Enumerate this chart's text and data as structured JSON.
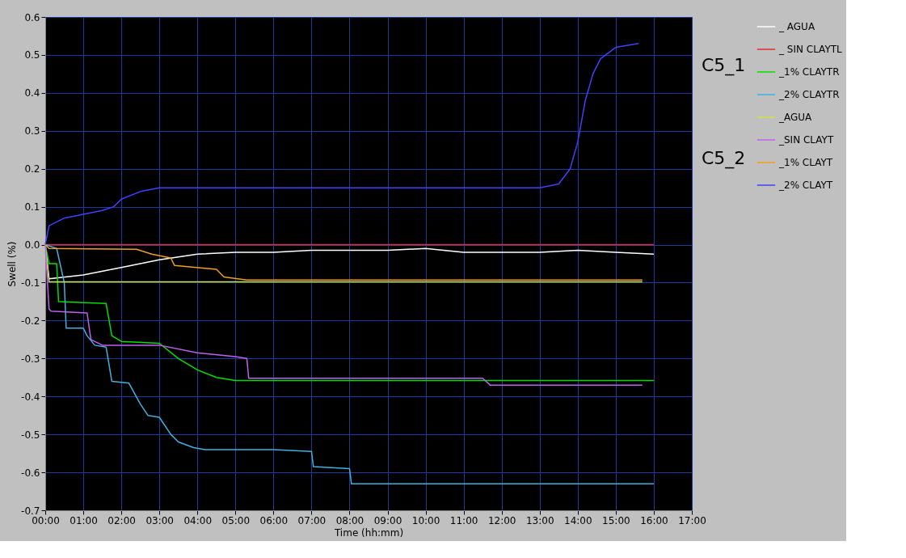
{
  "chart_data": {
    "type": "line",
    "xlabel": "Time (hh:mm)",
    "ylabel": "Swell (%)",
    "xlim": [
      0,
      17
    ],
    "ylim": [
      -0.7,
      0.6
    ],
    "xticks": [
      {
        "value": 0,
        "label": "00:00"
      },
      {
        "value": 1,
        "label": "01:00"
      },
      {
        "value": 2,
        "label": "02:00"
      },
      {
        "value": 3,
        "label": "03:00"
      },
      {
        "value": 4,
        "label": "04:00"
      },
      {
        "value": 5,
        "label": "05:00"
      },
      {
        "value": 6,
        "label": "06:00"
      },
      {
        "value": 7,
        "label": "07:00"
      },
      {
        "value": 8,
        "label": "08:00"
      },
      {
        "value": 9,
        "label": "09:00"
      },
      {
        "value": 10,
        "label": "10:00"
      },
      {
        "value": 11,
        "label": "11:00"
      },
      {
        "value": 12,
        "label": "12:00"
      },
      {
        "value": 13,
        "label": "13:00"
      },
      {
        "value": 14,
        "label": "14:00"
      },
      {
        "value": 15,
        "label": "15:00"
      },
      {
        "value": 16,
        "label": "16:00"
      },
      {
        "value": 17,
        "label": "17:00"
      }
    ],
    "yticks": [
      -0.7,
      -0.6,
      -0.5,
      -0.4,
      -0.3,
      -0.2,
      -0.1,
      {
        "value": 0,
        "label": "0.0"
      },
      0.1,
      0.2,
      0.3,
      0.4,
      0.5,
      0.6
    ],
    "grid": true,
    "legend": "top right",
    "line_style": "solid",
    "marker": "none",
    "annotations": [
      "C5_1",
      "C5_2"
    ],
    "series": [
      {
        "name": "_ AGUA",
        "color": "#ffffff",
        "x": [
          0,
          0.1,
          1,
          2,
          3,
          4,
          5,
          6,
          7,
          8,
          9,
          10,
          11,
          12,
          13,
          14,
          15,
          16
        ],
        "values": [
          0,
          -0.09,
          -0.08,
          -0.06,
          -0.04,
          -0.025,
          -0.02,
          -0.02,
          -0.015,
          -0.015,
          -0.015,
          -0.01,
          -0.02,
          -0.02,
          -0.02,
          -0.015,
          -0.02,
          -0.025
        ]
      },
      {
        "name": "_ SIN CLAYTL",
        "color": "#e03030",
        "x": [
          0,
          16
        ],
        "values": [
          0,
          0
        ]
      },
      {
        "name": "_1% CLAYTR",
        "color": "#00e000",
        "x": [
          0,
          0.1,
          0.3,
          0.35,
          1.6,
          1.75,
          2,
          3,
          3.5,
          4,
          4.5,
          5,
          6,
          16
        ],
        "values": [
          0,
          -0.05,
          -0.05,
          -0.15,
          -0.155,
          -0.24,
          -0.255,
          -0.26,
          -0.3,
          -0.33,
          -0.35,
          -0.358,
          -0.358,
          -0.358
        ]
      },
      {
        "name": "_2% CLAYTR",
        "color": "#40b0e0",
        "x": [
          0,
          0.3,
          0.5,
          0.55,
          1,
          1.1,
          1.3,
          1.6,
          1.75,
          2.2,
          2.5,
          2.7,
          3,
          3.3,
          3.5,
          3.9,
          4.2,
          6,
          7,
          7.05,
          8,
          8.05,
          16
        ],
        "values": [
          0,
          -0.01,
          -0.1,
          -0.22,
          -0.22,
          -0.24,
          -0.265,
          -0.27,
          -0.36,
          -0.365,
          -0.42,
          -0.45,
          -0.455,
          -0.5,
          -0.52,
          -0.535,
          -0.54,
          -0.54,
          -0.545,
          -0.585,
          -0.59,
          -0.63,
          -0.63
        ]
      },
      {
        "name": "_AGUA",
        "color": "#d0e040",
        "x": [
          0,
          0.1,
          15.7
        ],
        "values": [
          0,
          -0.098,
          -0.098
        ]
      },
      {
        "name": "_SIN CLAYT",
        "color": "#c060f0",
        "x": [
          0,
          0.1,
          0.15,
          1.1,
          1.2,
          1.5,
          3,
          4,
          5,
          5.3,
          5.35,
          11.5,
          11.7,
          15.7
        ],
        "values": [
          0,
          -0.17,
          -0.175,
          -0.18,
          -0.25,
          -0.265,
          -0.265,
          -0.285,
          -0.295,
          -0.3,
          -0.352,
          -0.352,
          -0.37,
          -0.37
        ]
      },
      {
        "name": "_1% CLAYT",
        "color": "#f0a020",
        "x": [
          0,
          0.1,
          2.4,
          2.8,
          3.3,
          3.4,
          4.5,
          4.7,
          5.3,
          15.7
        ],
        "values": [
          0,
          -0.01,
          -0.012,
          -0.025,
          -0.035,
          -0.055,
          -0.065,
          -0.085,
          -0.093,
          -0.093
        ]
      },
      {
        "name": "_2% CLAYT",
        "color": "#4040ff",
        "x": [
          0,
          0.1,
          0.5,
          1,
          1.5,
          1.8,
          2,
          2.5,
          3,
          13,
          13.5,
          13.8,
          14,
          14.2,
          14.4,
          14.6,
          15,
          15.6
        ],
        "values": [
          0,
          0.05,
          0.07,
          0.08,
          0.09,
          0.1,
          0.12,
          0.14,
          0.15,
          0.15,
          0.16,
          0.2,
          0.27,
          0.38,
          0.45,
          0.49,
          0.52,
          0.53
        ]
      }
    ]
  }
}
